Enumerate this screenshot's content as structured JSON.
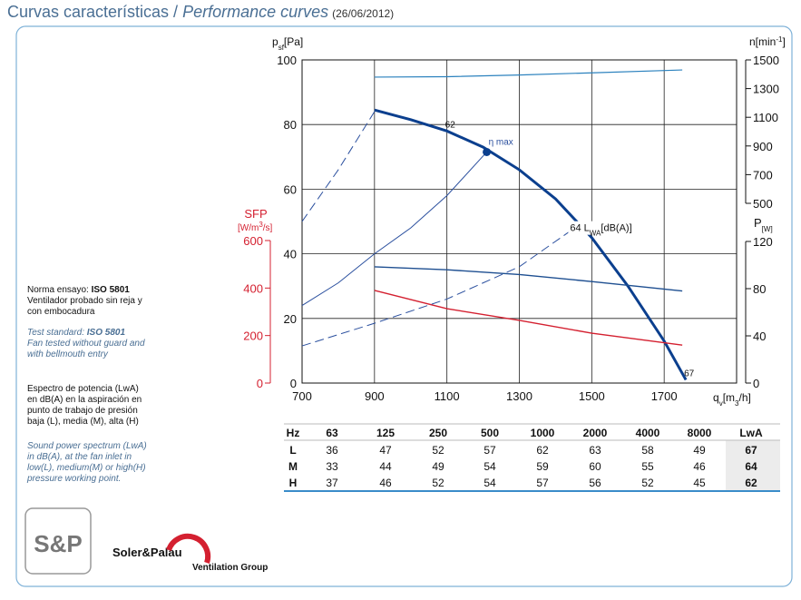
{
  "header": {
    "title": "Curvas características / ",
    "title_en": "Performance curves",
    "date": "(26/06/2012)"
  },
  "notes": [
    {
      "lines": [
        {
          "text": "Norma ensayo: ",
          "bold": "ISO 5801"
        },
        {
          "text": "Ventilador probado sin reja y"
        },
        {
          "text": "con embocadura"
        }
      ]
    },
    {
      "italic": true,
      "lines": [
        {
          "text": "Test standard: ",
          "bold": "ISO 5801"
        },
        {
          "text": "Fan tested without guard and"
        },
        {
          "text": "with bellmouth entry"
        }
      ]
    },
    {
      "lines": [
        {
          "text": "Espectro de potencia (LwA)"
        },
        {
          "text": "en dB(A) en la aspiración en"
        },
        {
          "text": "punto de trabajo de presión"
        },
        {
          "text": "baja (L), media (M), alta (H)"
        }
      ]
    },
    {
      "italic": true,
      "lines": [
        {
          "text": "Sound power spectrum (LwA)"
        },
        {
          "text": "in dB(A), at the fan inlet in"
        },
        {
          "text": "low(L), medium(M) or high(H)"
        },
        {
          "text": "pressure working point."
        }
      ]
    }
  ],
  "logo": {
    "mark": "S&P",
    "brand": "Soler&Palau",
    "group": "Ventilation Group"
  },
  "chart_data": {
    "type": "line",
    "xlabel": [
      "q",
      "v",
      "[m",
      "3",
      "/h]"
    ],
    "ylabel": [
      "p",
      "sf",
      "[Pa]"
    ],
    "y2label": [
      "n[min",
      "-1",
      "]"
    ],
    "y3label": [
      "P",
      "[W]"
    ],
    "y4label": {
      "name": "SFP",
      "unit": [
        "[W/m",
        "3",
        "/s]"
      ]
    },
    "xlim": [
      700,
      1900
    ],
    "xticks": [
      700,
      900,
      1100,
      1300,
      1500,
      1700
    ],
    "ylim": [
      0,
      100
    ],
    "yticks": [
      0,
      20,
      40,
      60,
      80,
      100
    ],
    "y2lim": [
      500,
      1500
    ],
    "y2ticks": [
      500,
      700,
      900,
      1100,
      1300,
      1500
    ],
    "y3lim": [
      0,
      120
    ],
    "y3ticks": [
      0,
      40,
      80,
      120
    ],
    "y4lim": [
      0,
      600
    ],
    "y4ticks": [
      0,
      200,
      400,
      600
    ],
    "grid": true,
    "series": [
      {
        "axis": "y",
        "color": "#0b3f8e",
        "width": 3,
        "x": [
          900,
          1000,
          1100,
          1200,
          1300,
          1400,
          1500,
          1600,
          1700,
          1760
        ],
        "values": [
          84.5,
          81.5,
          78,
          73,
          66,
          57,
          45,
          30,
          13,
          1
        ]
      },
      {
        "axis": "y2",
        "color": "#2c82be",
        "width": 1.2,
        "x": [
          900,
          1100,
          1300,
          1500,
          1750
        ],
        "values": [
          1380,
          1383,
          1395,
          1410,
          1430
        ]
      },
      {
        "axis": "y3",
        "color": "#1e4f91",
        "width": 1.4,
        "x": [
          900,
          1100,
          1300,
          1500,
          1750
        ],
        "values": [
          98.5,
          96,
          92,
          86,
          78
        ]
      },
      {
        "axis": "y4",
        "color": "#d42030",
        "width": 1.4,
        "x": [
          900,
          1100,
          1300,
          1500,
          1750
        ],
        "values": [
          390,
          313,
          264,
          210,
          160
        ]
      },
      {
        "axis": "y",
        "color": "#2a4f9e",
        "width": 1,
        "x": [
          700,
          800,
          900,
          1000,
          1100,
          1210
        ],
        "values": [
          24,
          31,
          40,
          48,
          58,
          71.5
        ]
      },
      {
        "axis": "y",
        "color": "#2a4f9e",
        "width": 1,
        "dashed": true,
        "x": [
          700,
          800,
          900
        ],
        "values": [
          50,
          66,
          84
        ]
      },
      {
        "axis": "y",
        "color": "#2a4f9e",
        "width": 1,
        "dashed": true,
        "x": [
          700,
          900,
          1100,
          1300,
          1440
        ],
        "values": [
          11.5,
          18.5,
          26,
          36,
          47
        ]
      }
    ],
    "annotations": [
      {
        "text": "62",
        "x": 1100,
        "y": 78
      },
      {
        "text": "67",
        "x": 1760,
        "y": 1
      }
    ],
    "eta_max": {
      "label": "η max",
      "x": 1210,
      "y": 71.5
    },
    "lwa_label": {
      "text": [
        "64 L",
        "WA",
        "[dB(A)]"
      ],
      "x": 1440,
      "y": 47
    }
  },
  "table": {
    "header": [
      "Hz",
      63,
      125,
      250,
      500,
      1000,
      2000,
      4000,
      8000,
      "LwA"
    ],
    "rows": [
      [
        "L",
        36,
        47,
        52,
        57,
        62,
        63,
        58,
        49,
        67
      ],
      [
        "M",
        33,
        44,
        49,
        54,
        59,
        60,
        55,
        46,
        64
      ],
      [
        "H",
        37,
        46,
        52,
        54,
        57,
        56,
        52,
        45,
        62
      ]
    ]
  }
}
